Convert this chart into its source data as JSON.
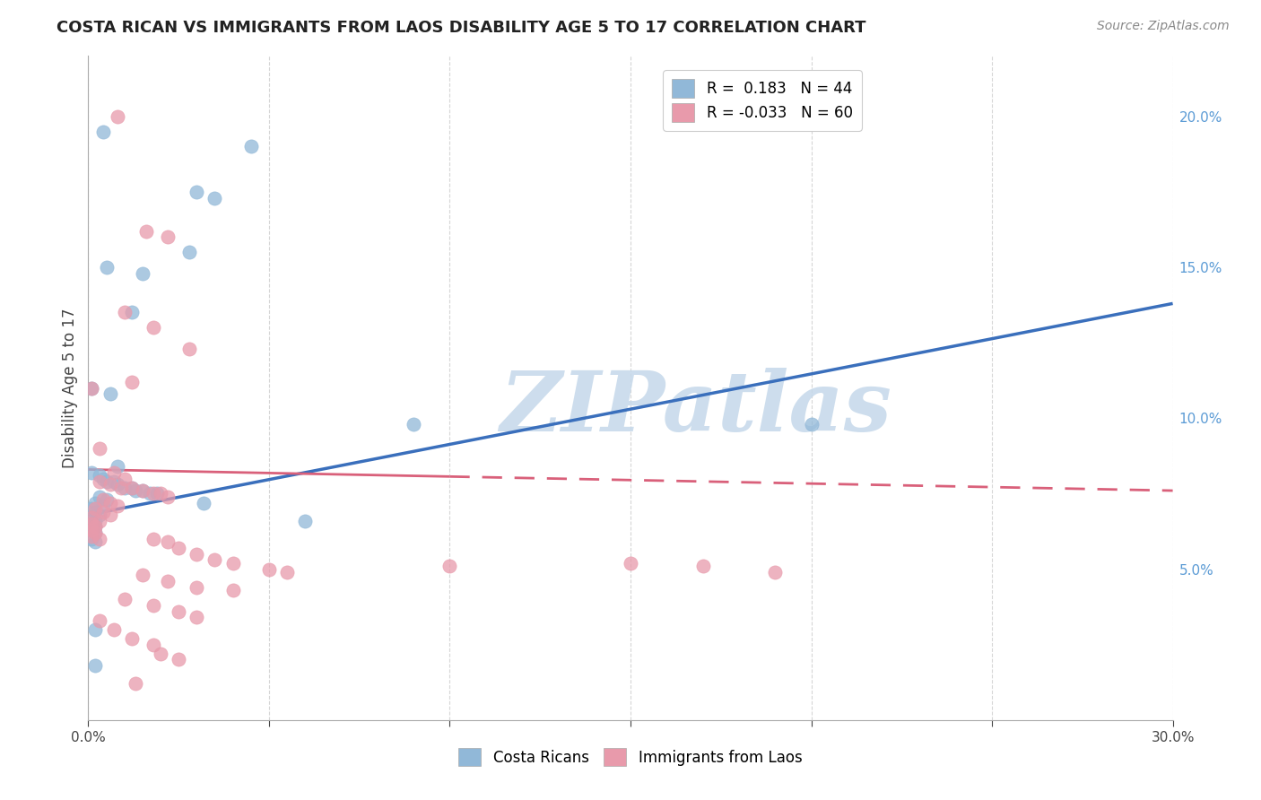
{
  "title": "COSTA RICAN VS IMMIGRANTS FROM LAOS DISABILITY AGE 5 TO 17 CORRELATION CHART",
  "source": "Source: ZipAtlas.com",
  "ylabel": "Disability Age 5 to 17",
  "xlim": [
    0.0,
    0.3
  ],
  "ylim": [
    0.0,
    0.22
  ],
  "xticks": [
    0.0,
    0.05,
    0.1,
    0.15,
    0.2,
    0.25,
    0.3
  ],
  "yticks": [
    0.05,
    0.1,
    0.15,
    0.2
  ],
  "xticklabels": [
    "0.0%",
    "",
    "",
    "",
    "",
    "",
    "30.0%"
  ],
  "yticklabels": [
    "5.0%",
    "10.0%",
    "15.0%",
    "20.0%"
  ],
  "blue_color": "#91b8d8",
  "pink_color": "#e89aab",
  "line_blue": "#3a6fbc",
  "line_pink": "#d9607a",
  "costa_rica_points": [
    [
      0.004,
      0.195
    ],
    [
      0.045,
      0.19
    ],
    [
      0.03,
      0.175
    ],
    [
      0.035,
      0.173
    ],
    [
      0.028,
      0.155
    ],
    [
      0.005,
      0.15
    ],
    [
      0.015,
      0.148
    ],
    [
      0.012,
      0.135
    ],
    [
      0.001,
      0.11
    ],
    [
      0.006,
      0.108
    ],
    [
      0.008,
      0.084
    ],
    [
      0.001,
      0.082
    ],
    [
      0.003,
      0.081
    ],
    [
      0.004,
      0.08
    ],
    [
      0.005,
      0.079
    ],
    [
      0.007,
      0.079
    ],
    [
      0.008,
      0.078
    ],
    [
      0.01,
      0.077
    ],
    [
      0.012,
      0.077
    ],
    [
      0.013,
      0.076
    ],
    [
      0.015,
      0.076
    ],
    [
      0.017,
      0.075
    ],
    [
      0.019,
      0.075
    ],
    [
      0.003,
      0.074
    ],
    [
      0.005,
      0.073
    ],
    [
      0.002,
      0.072
    ],
    [
      0.004,
      0.071
    ],
    [
      0.001,
      0.07
    ],
    [
      0.002,
      0.069
    ],
    [
      0.003,
      0.068
    ],
    [
      0.001,
      0.067
    ],
    [
      0.002,
      0.066
    ],
    [
      0.001,
      0.065
    ],
    [
      0.002,
      0.064
    ],
    [
      0.001,
      0.063
    ],
    [
      0.002,
      0.062
    ],
    [
      0.001,
      0.06
    ],
    [
      0.002,
      0.059
    ],
    [
      0.032,
      0.072
    ],
    [
      0.06,
      0.066
    ],
    [
      0.09,
      0.098
    ],
    [
      0.2,
      0.098
    ],
    [
      0.002,
      0.03
    ],
    [
      0.002,
      0.018
    ]
  ],
  "laos_points": [
    [
      0.008,
      0.2
    ],
    [
      0.016,
      0.162
    ],
    [
      0.022,
      0.16
    ],
    [
      0.01,
      0.135
    ],
    [
      0.018,
      0.13
    ],
    [
      0.028,
      0.123
    ],
    [
      0.012,
      0.112
    ],
    [
      0.001,
      0.11
    ],
    [
      0.003,
      0.09
    ],
    [
      0.007,
      0.082
    ],
    [
      0.01,
      0.08
    ],
    [
      0.003,
      0.079
    ],
    [
      0.006,
      0.078
    ],
    [
      0.009,
      0.077
    ],
    [
      0.012,
      0.077
    ],
    [
      0.015,
      0.076
    ],
    [
      0.018,
      0.075
    ],
    [
      0.02,
      0.075
    ],
    [
      0.022,
      0.074
    ],
    [
      0.004,
      0.073
    ],
    [
      0.006,
      0.072
    ],
    [
      0.008,
      0.071
    ],
    [
      0.002,
      0.07
    ],
    [
      0.004,
      0.069
    ],
    [
      0.006,
      0.068
    ],
    [
      0.001,
      0.067
    ],
    [
      0.003,
      0.066
    ],
    [
      0.001,
      0.065
    ],
    [
      0.002,
      0.064
    ],
    [
      0.001,
      0.063
    ],
    [
      0.002,
      0.062
    ],
    [
      0.001,
      0.061
    ],
    [
      0.003,
      0.06
    ],
    [
      0.018,
      0.06
    ],
    [
      0.022,
      0.059
    ],
    [
      0.025,
      0.057
    ],
    [
      0.03,
      0.055
    ],
    [
      0.035,
      0.053
    ],
    [
      0.04,
      0.052
    ],
    [
      0.05,
      0.05
    ],
    [
      0.055,
      0.049
    ],
    [
      0.015,
      0.048
    ],
    [
      0.022,
      0.046
    ],
    [
      0.03,
      0.044
    ],
    [
      0.04,
      0.043
    ],
    [
      0.01,
      0.04
    ],
    [
      0.018,
      0.038
    ],
    [
      0.025,
      0.036
    ],
    [
      0.03,
      0.034
    ],
    [
      0.1,
      0.051
    ],
    [
      0.15,
      0.052
    ],
    [
      0.17,
      0.051
    ],
    [
      0.19,
      0.049
    ],
    [
      0.003,
      0.033
    ],
    [
      0.007,
      0.03
    ],
    [
      0.012,
      0.027
    ],
    [
      0.018,
      0.025
    ],
    [
      0.02,
      0.022
    ],
    [
      0.025,
      0.02
    ],
    [
      0.013,
      0.012
    ]
  ],
  "blue_line": {
    "x0": 0.0,
    "y0": 0.068,
    "x1": 0.3,
    "y1": 0.138
  },
  "pink_line": {
    "x0": 0.0,
    "y0": 0.083,
    "x1": 0.3,
    "y1": 0.076
  },
  "pink_line_solid_end": 0.1,
  "watermark_text": "ZIPatlas",
  "watermark_color": "#c5d8ea",
  "legend_top": {
    "blue_label": "R =  0.183   N = 44",
    "pink_label": "R = -0.033   N = 60"
  },
  "legend_bottom": {
    "blue_label": "Costa Ricans",
    "pink_label": "Immigrants from Laos"
  }
}
